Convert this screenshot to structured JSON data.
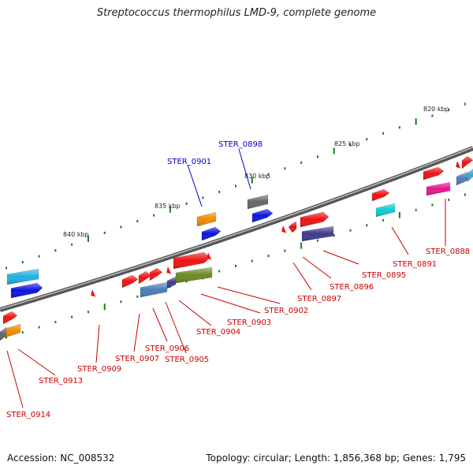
{
  "title": "Streptococcus thermophilus LMD-9, complete genome",
  "footer": {
    "accession": "Accession: NC_008532",
    "summary": "Topology: circular; Length: 1,856,368 bp; Genes: 1,795"
  },
  "scale_labels": [
    "820 kbp",
    "825 kbp",
    "830 kbp",
    "835 kbp",
    "840 kbp"
  ],
  "colors": {
    "locus_highlight": "#0000cc",
    "locus_label": "#cc0000",
    "backbone": "#777777",
    "ticks": "#1a7a1a"
  },
  "genes": [
    {
      "locus": "STER_0888",
      "highlight": false
    },
    {
      "locus": "STER_0891",
      "highlight": false
    },
    {
      "locus": "STER_0895",
      "highlight": false
    },
    {
      "locus": "STER_0896",
      "highlight": false
    },
    {
      "locus": "STER_0897",
      "highlight": false
    },
    {
      "locus": "STER_0898",
      "highlight": true
    },
    {
      "locus": "STER_0901",
      "highlight": true
    },
    {
      "locus": "STER_0902",
      "highlight": false
    },
    {
      "locus": "STER_0903",
      "highlight": false
    },
    {
      "locus": "STER_0904",
      "highlight": false
    },
    {
      "locus": "STER_0905",
      "highlight": false
    },
    {
      "locus": "STER_0906",
      "highlight": false
    },
    {
      "locus": "STER_0907",
      "highlight": false
    },
    {
      "locus": "STER_0909",
      "highlight": false
    },
    {
      "locus": "STER_0913",
      "highlight": false
    },
    {
      "locus": "STER_0914",
      "highlight": false
    }
  ]
}
